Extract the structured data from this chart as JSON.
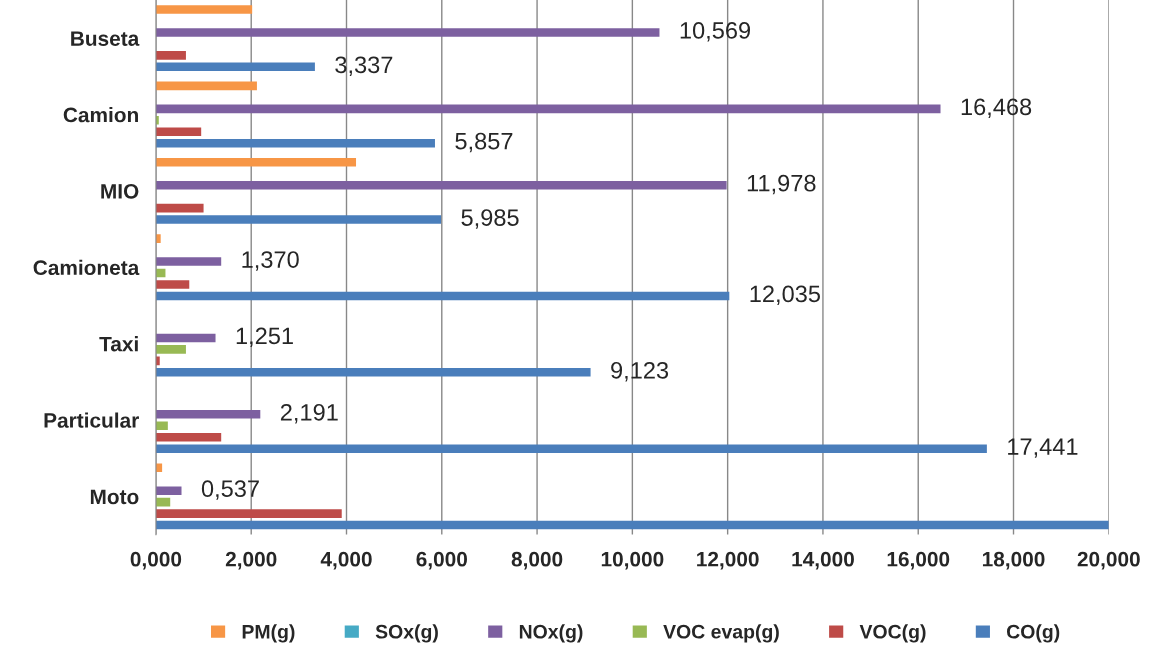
{
  "chart_data": {
    "type": "bar",
    "orientation": "horizontal",
    "categories": [
      "Buseta",
      "Camion",
      "MIO",
      "Camioneta",
      "Taxi",
      "Particular",
      "Moto"
    ],
    "series": [
      {
        "name": "CO(g)",
        "color": "#4a7ebb",
        "values": [
          3.337,
          5.857,
          5.985,
          12.035,
          9.123,
          17.441,
          20.0
        ],
        "value_labels": [
          "3,337",
          "5,857",
          "5,985",
          "12,035",
          "9,123",
          "17,441",
          null
        ]
      },
      {
        "name": "VOC(g)",
        "color": "#be4b48",
        "values": [
          0.63,
          0.95,
          1.0,
          0.7,
          0.08,
          1.37,
          3.9
        ]
      },
      {
        "name": "VOC evap(g)",
        "color": "#98b954",
        "values": [
          0,
          0.06,
          0,
          0.2,
          0.63,
          0.25,
          0.3
        ]
      },
      {
        "name": "NOx(g)",
        "color": "#7d60a0",
        "values": [
          10.569,
          16.468,
          11.978,
          1.37,
          1.251,
          2.191,
          0.537
        ],
        "value_labels": [
          "10,569",
          "16,468",
          "11,978",
          "1,370",
          "1,251",
          "2,191",
          "0,537"
        ]
      },
      {
        "name": "SOx(g)",
        "color": "#46aac5",
        "values": [
          0,
          0,
          0,
          0,
          0,
          0,
          0
        ]
      },
      {
        "name": "PM(g)",
        "color": "#f79646",
        "values": [
          2.02,
          2.12,
          4.2,
          0.1,
          0,
          0,
          0.13
        ]
      }
    ],
    "xlim": [
      0,
      20
    ],
    "xticks": [
      {
        "value": 0,
        "label": "0,000"
      },
      {
        "value": 2,
        "label": "2,000"
      },
      {
        "value": 4,
        "label": "4,000"
      },
      {
        "value": 6,
        "label": "6,000"
      },
      {
        "value": 8,
        "label": "8,000"
      },
      {
        "value": 10,
        "label": "10,000"
      },
      {
        "value": 12,
        "label": "12,000"
      },
      {
        "value": 14,
        "label": "14,000"
      },
      {
        "value": 16,
        "label": "16,000"
      },
      {
        "value": 18,
        "label": "18,000"
      },
      {
        "value": 20,
        "label": "20,000"
      }
    ],
    "grid": "x",
    "legend": "bottom"
  }
}
